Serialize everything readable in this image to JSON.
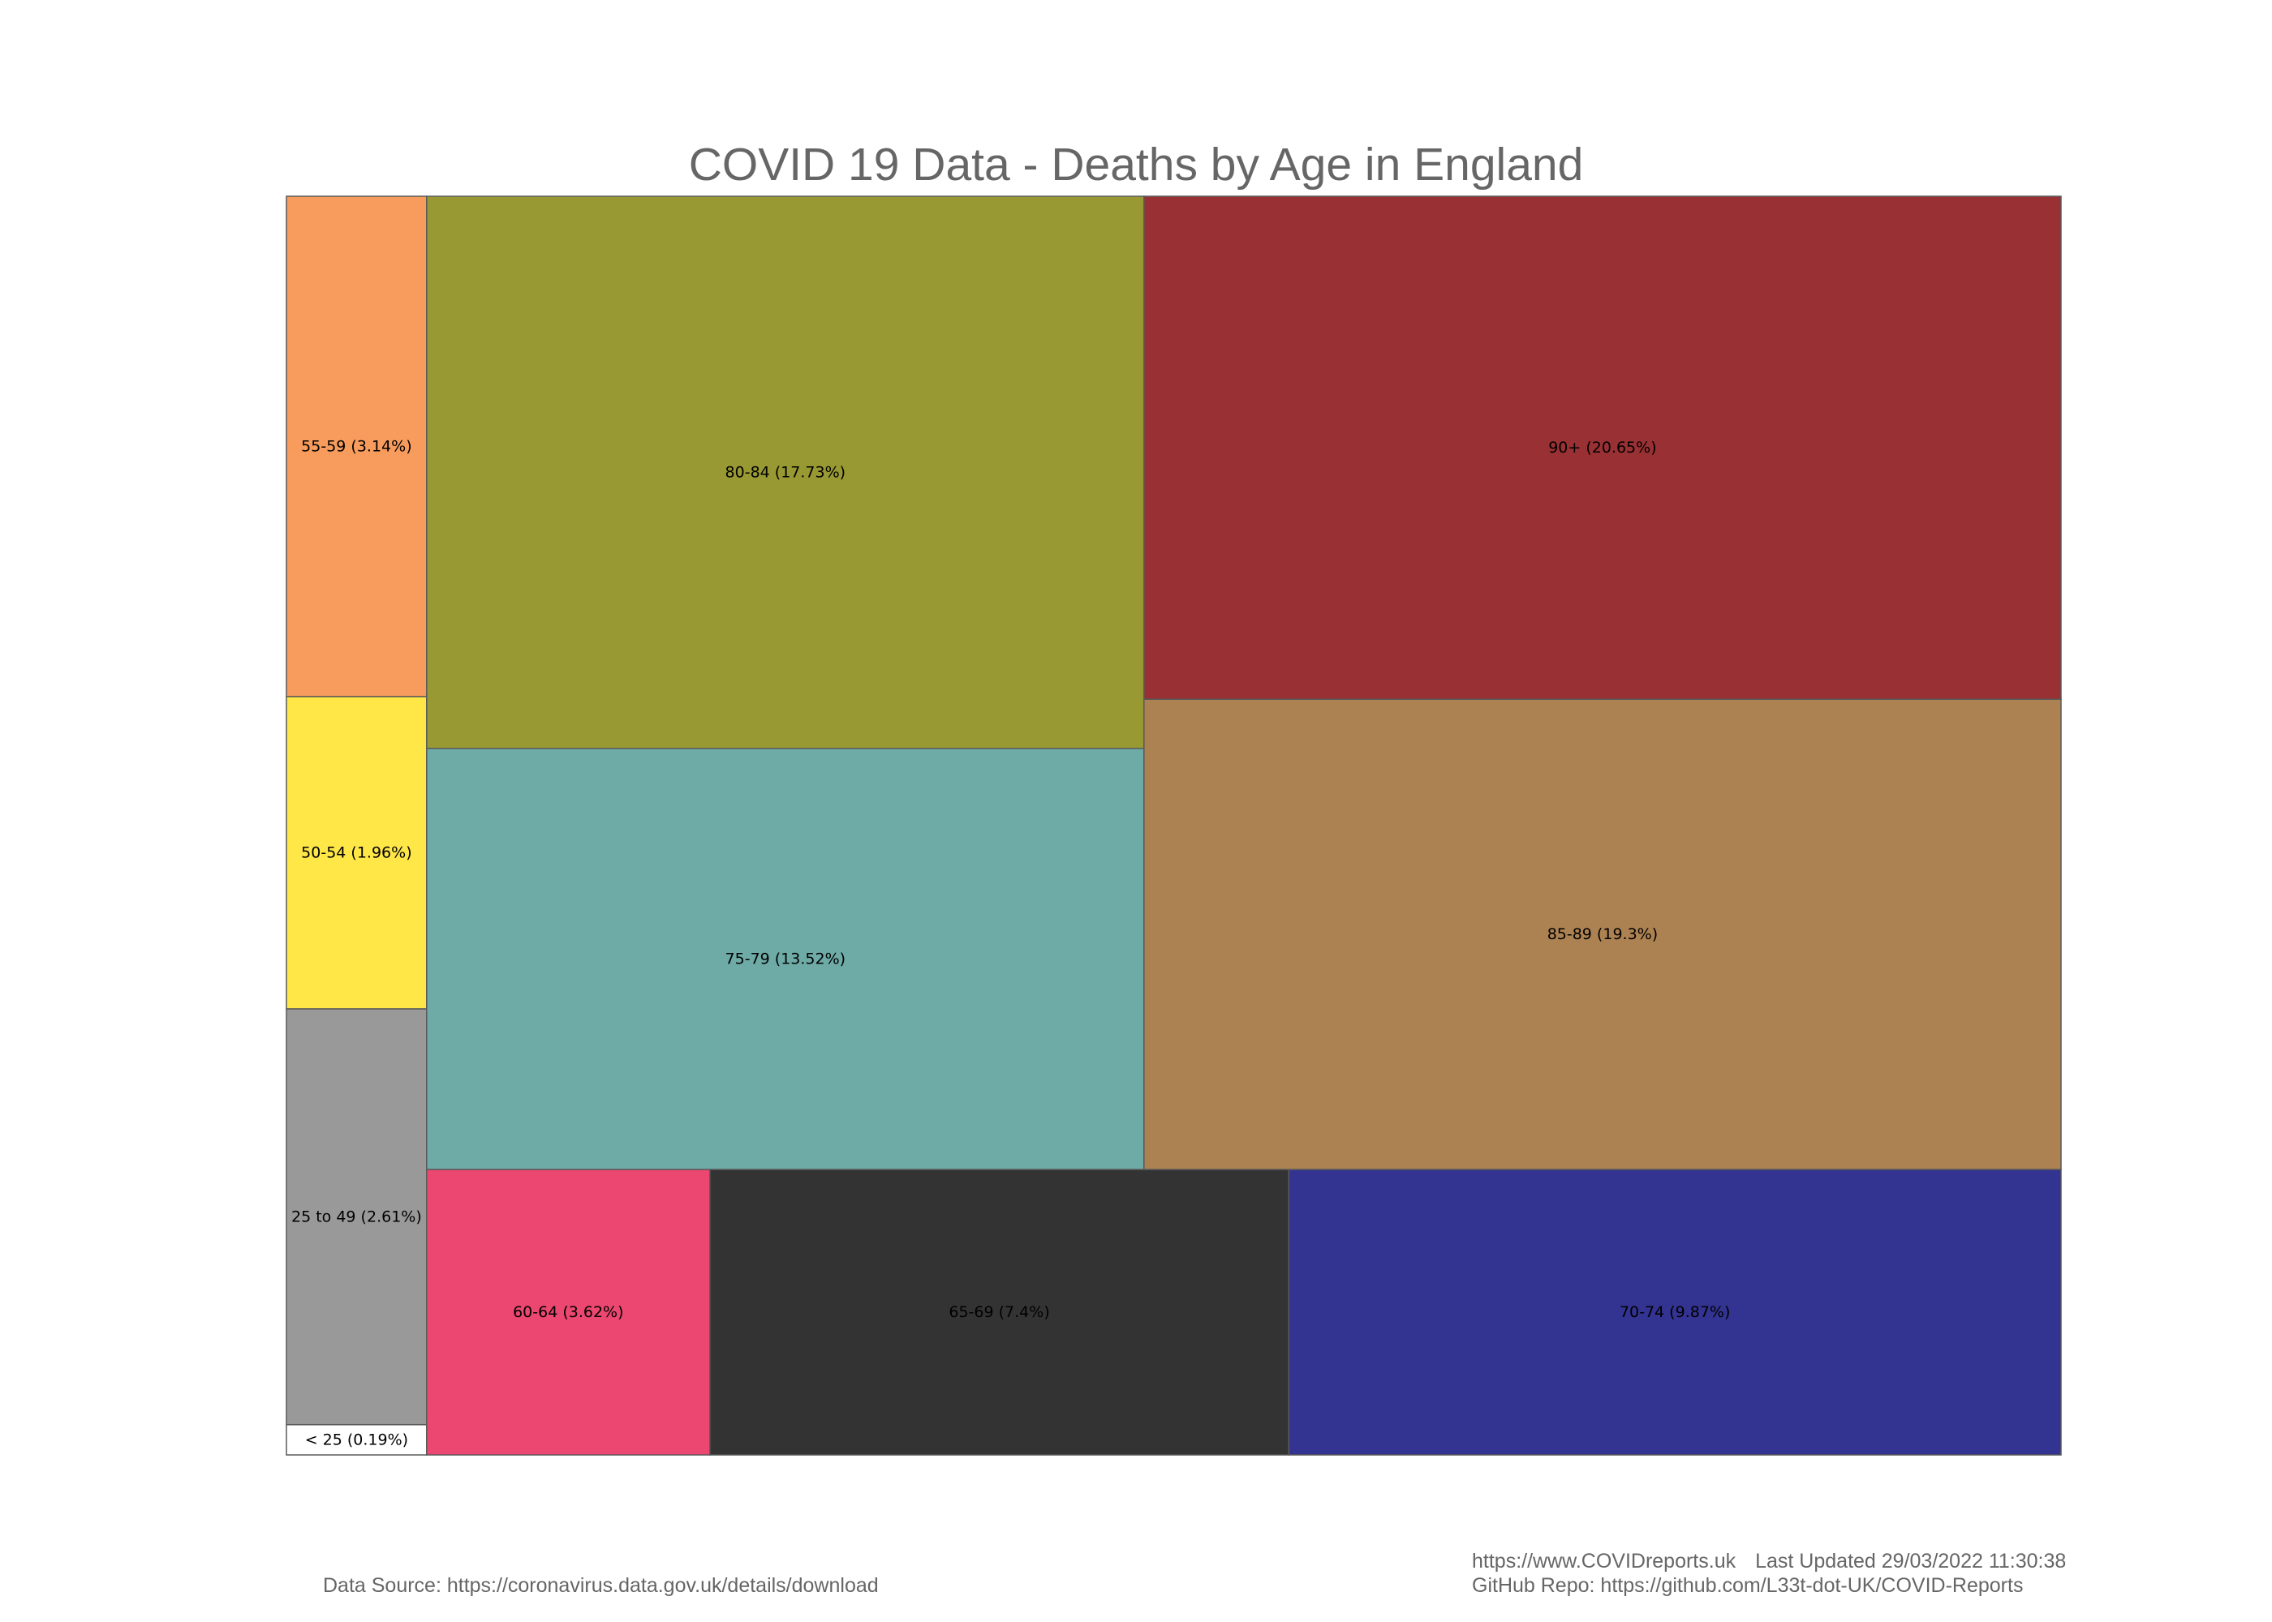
{
  "chart_data": {
    "type": "treemap",
    "title": "COVID 19 Data - Deaths by Age in England",
    "unit": "% of deaths",
    "items": [
      {
        "key": "lt25",
        "label": "< 25  (0.19%)",
        "value": 0.19,
        "color": "#ffffff"
      },
      {
        "key": "25_49",
        "label": "25 to 49 (2.61%)",
        "value": 2.61,
        "color": "#999999"
      },
      {
        "key": "50_54",
        "label": "50-54 (1.96%)",
        "value": 1.96,
        "color": "#ffe747"
      },
      {
        "key": "55_59",
        "label": "55-59 (3.14%)",
        "value": 3.14,
        "color": "#f79c5c"
      },
      {
        "key": "60_64",
        "label": "60-64 (3.62%)",
        "value": 3.62,
        "color": "#eb4770"
      },
      {
        "key": "65_69",
        "label": "65-69 (7.4%)",
        "value": 7.4,
        "color": "#333333"
      },
      {
        "key": "70_74",
        "label": "70-74 (9.87%)",
        "value": 9.87,
        "color": "#333391"
      },
      {
        "key": "75_79",
        "label": "75-79 (13.52%)",
        "value": 13.52,
        "color": "#6eaba6"
      },
      {
        "key": "80_84",
        "label": "80-84 (17.73%)",
        "value": 17.73,
        "color": "#999933"
      },
      {
        "key": "85_89",
        "label": "85-89 (19.3%)",
        "value": 19.3,
        "color": "#ad8252"
      },
      {
        "key": "90p",
        "label": "90+ (20.65%)",
        "value": 20.65,
        "color": "#993033"
      }
    ]
  },
  "footer": {
    "data_source": "Data Source: https://coronavirus.data.gov.uk/details/download",
    "site": "https://www.COVIDreports.uk",
    "last_updated": "Last Updated 29/03/2022 11:30:38",
    "github": "GitHub Repo: https://github.com/L33t-dot-UK/COVID-Reports"
  }
}
